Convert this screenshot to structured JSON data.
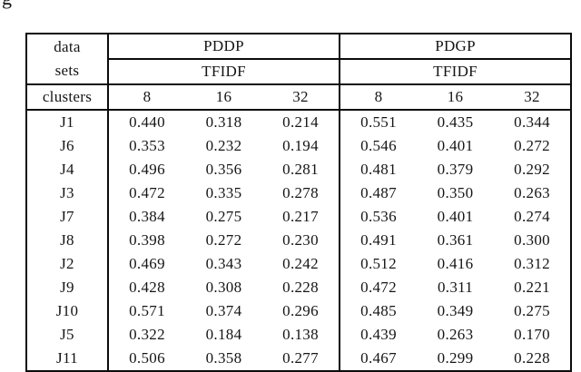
{
  "page": {
    "caption_fragment": "g"
  },
  "colors": {
    "background": "#ffffff",
    "text": "#151515",
    "border": "#0b0b0b"
  },
  "table": {
    "header": {
      "row_label_line1": "data",
      "row_label_line2": "sets",
      "clusters_label": "clusters",
      "groups": [
        {
          "method": "PDDP",
          "weighting": "TFIDF",
          "cluster_sizes": [
            "8",
            "16",
            "32"
          ]
        },
        {
          "method": "PDGP",
          "weighting": "TFIDF",
          "cluster_sizes": [
            "8",
            "16",
            "32"
          ]
        }
      ]
    },
    "rows": [
      {
        "dataset": "J1",
        "pddp": [
          "0.440",
          "0.318",
          "0.214"
        ],
        "pdgp": [
          "0.551",
          "0.435",
          "0.344"
        ]
      },
      {
        "dataset": "J6",
        "pddp": [
          "0.353",
          "0.232",
          "0.194"
        ],
        "pdgp": [
          "0.546",
          "0.401",
          "0.272"
        ]
      },
      {
        "dataset": "J4",
        "pddp": [
          "0.496",
          "0.356",
          "0.281"
        ],
        "pdgp": [
          "0.481",
          "0.379",
          "0.292"
        ]
      },
      {
        "dataset": "J3",
        "pddp": [
          "0.472",
          "0.335",
          "0.278"
        ],
        "pdgp": [
          "0.487",
          "0.350",
          "0.263"
        ]
      },
      {
        "dataset": "J7",
        "pddp": [
          "0.384",
          "0.275",
          "0.217"
        ],
        "pdgp": [
          "0.536",
          "0.401",
          "0.274"
        ]
      },
      {
        "dataset": "J8",
        "pddp": [
          "0.398",
          "0.272",
          "0.230"
        ],
        "pdgp": [
          "0.491",
          "0.361",
          "0.300"
        ]
      },
      {
        "dataset": "J2",
        "pddp": [
          "0.469",
          "0.343",
          "0.242"
        ],
        "pdgp": [
          "0.512",
          "0.416",
          "0.312"
        ]
      },
      {
        "dataset": "J9",
        "pddp": [
          "0.428",
          "0.308",
          "0.228"
        ],
        "pdgp": [
          "0.472",
          "0.311",
          "0.221"
        ]
      },
      {
        "dataset": "J10",
        "pddp": [
          "0.571",
          "0.374",
          "0.296"
        ],
        "pdgp": [
          "0.485",
          "0.349",
          "0.275"
        ]
      },
      {
        "dataset": "J5",
        "pddp": [
          "0.322",
          "0.184",
          "0.138"
        ],
        "pdgp": [
          "0.439",
          "0.263",
          "0.170"
        ]
      },
      {
        "dataset": "J11",
        "pddp": [
          "0.506",
          "0.358",
          "0.277"
        ],
        "pdgp": [
          "0.467",
          "0.299",
          "0.228"
        ]
      }
    ]
  },
  "chart_data": {
    "type": "table",
    "title": "",
    "column_groups": [
      "PDDP TFIDF",
      "PDGP TFIDF"
    ],
    "columns": [
      "data sets",
      "PDDP 8",
      "PDDP 16",
      "PDDP 32",
      "PDGP 8",
      "PDGP 16",
      "PDGP 32"
    ],
    "rows": [
      [
        "J1",
        0.44,
        0.318,
        0.214,
        0.551,
        0.435,
        0.344
      ],
      [
        "J6",
        0.353,
        0.232,
        0.194,
        0.546,
        0.401,
        0.272
      ],
      [
        "J4",
        0.496,
        0.356,
        0.281,
        0.481,
        0.379,
        0.292
      ],
      [
        "J3",
        0.472,
        0.335,
        0.278,
        0.487,
        0.35,
        0.263
      ],
      [
        "J7",
        0.384,
        0.275,
        0.217,
        0.536,
        0.401,
        0.274
      ],
      [
        "J8",
        0.398,
        0.272,
        0.23,
        0.491,
        0.361,
        0.3
      ],
      [
        "J2",
        0.469,
        0.343,
        0.242,
        0.512,
        0.416,
        0.312
      ],
      [
        "J9",
        0.428,
        0.308,
        0.228,
        0.472,
        0.311,
        0.221
      ],
      [
        "J10",
        0.571,
        0.374,
        0.296,
        0.485,
        0.349,
        0.275
      ],
      [
        "J5",
        0.322,
        0.184,
        0.138,
        0.439,
        0.263,
        0.17
      ],
      [
        "J11",
        0.506,
        0.358,
        0.277,
        0.467,
        0.299,
        0.228
      ]
    ]
  }
}
